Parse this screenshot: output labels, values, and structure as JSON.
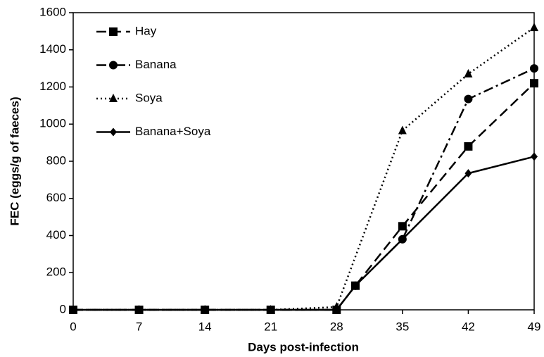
{
  "chart_data": {
    "type": "line",
    "xlabel": "Days post-infection",
    "ylabel": "FEC (eggs/g of faeces)",
    "xlim": [
      0,
      49
    ],
    "xticks": [
      0,
      7,
      14,
      21,
      28,
      35,
      42,
      49
    ],
    "ylim": [
      0,
      1600
    ],
    "yticks": [
      0,
      200,
      400,
      600,
      800,
      1000,
      1200,
      1400,
      1600
    ],
    "legend": "upper left",
    "series": [
      {
        "name": "Hay",
        "color": "#000000",
        "marker": "square",
        "dash": "dashed",
        "x": [
          0,
          7,
          14,
          21,
          28,
          30,
          35,
          42,
          49
        ],
        "values": [
          0,
          0,
          0,
          0,
          0,
          130,
          450,
          880,
          1220
        ]
      },
      {
        "name": "Banana",
        "color": "#000000",
        "marker": "circle",
        "dash": "dashdot",
        "x": [
          0,
          7,
          14,
          21,
          28,
          30,
          35,
          42,
          49
        ],
        "values": [
          0,
          0,
          0,
          0,
          0,
          130,
          380,
          1135,
          1300
        ]
      },
      {
        "name": "Soya",
        "color": "#000000",
        "marker": "triangle",
        "dash": "dotted",
        "x": [
          0,
          7,
          14,
          21,
          28,
          35,
          42,
          49
        ],
        "values": [
          0,
          0,
          0,
          0,
          15,
          965,
          1270,
          1520
        ]
      },
      {
        "name": "Banana+Soya",
        "color": "#000000",
        "marker": "diamond",
        "dash": "solid",
        "x": [
          0,
          7,
          14,
          21,
          28,
          30,
          35,
          42,
          49
        ],
        "values": [
          0,
          0,
          0,
          0,
          0,
          130,
          380,
          735,
          825
        ]
      }
    ]
  }
}
